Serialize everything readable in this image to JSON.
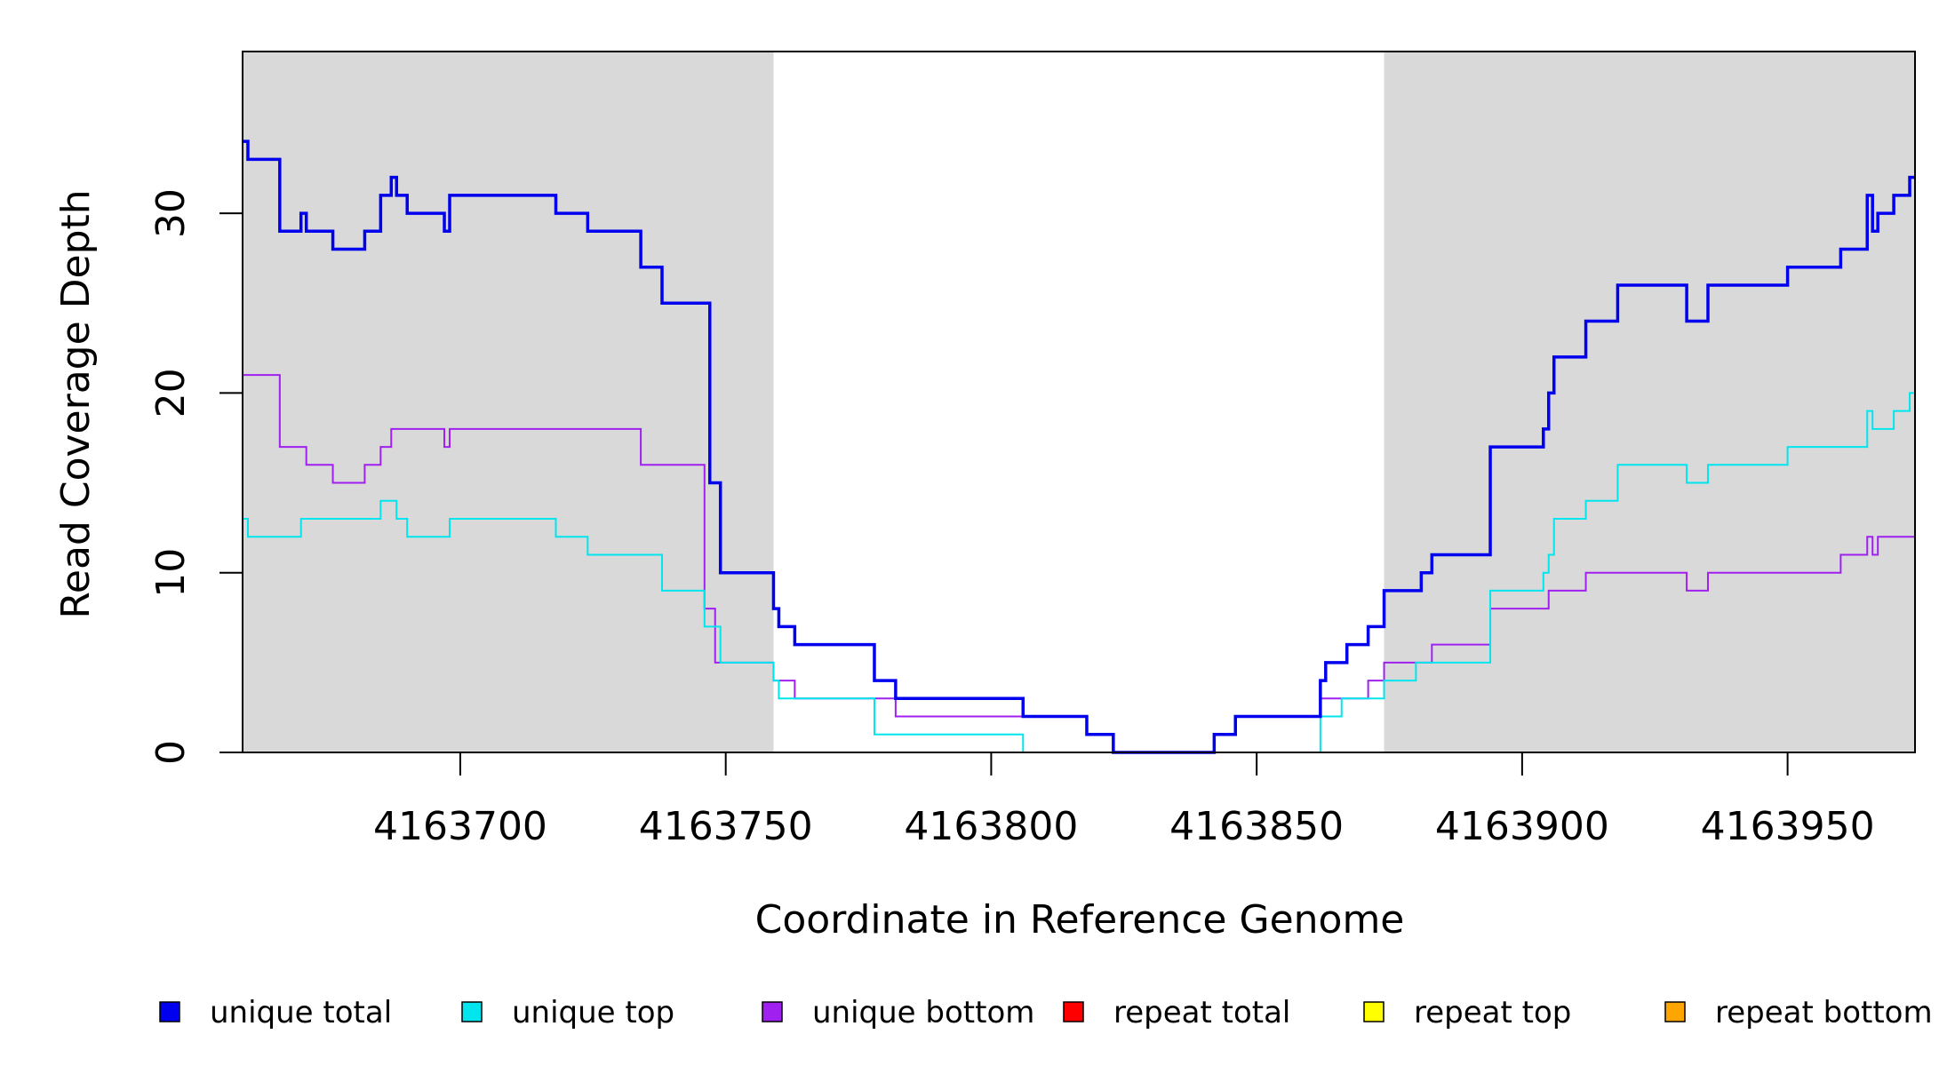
{
  "chart_data": {
    "type": "line",
    "xlabel": "Coordinate in Reference Genome",
    "ylabel": "Read Coverage Depth",
    "xlim": [
      4163659,
      4163974
    ],
    "ylim": [
      0,
      39
    ],
    "x_ticks": [
      4163700,
      4163750,
      4163800,
      4163850,
      4163900,
      4163950
    ],
    "y_ticks": [
      0,
      10,
      20,
      30
    ],
    "shaded_regions": [
      [
        4163659,
        4163759
      ],
      [
        4163874,
        4163974
      ]
    ],
    "grid": false,
    "legend_position": "bottom",
    "series": [
      {
        "name": "unique total",
        "color": "#0000EE",
        "style": "step",
        "points": [
          [
            4163659,
            34
          ],
          [
            4163660,
            33
          ],
          [
            4163666,
            29
          ],
          [
            4163670,
            30
          ],
          [
            4163671,
            29
          ],
          [
            4163676,
            28
          ],
          [
            4163682,
            29
          ],
          [
            4163685,
            31
          ],
          [
            4163687,
            32
          ],
          [
            4163688,
            31
          ],
          [
            4163690,
            30
          ],
          [
            4163697,
            29
          ],
          [
            4163698,
            31
          ],
          [
            4163718,
            30
          ],
          [
            4163724,
            29
          ],
          [
            4163734,
            27
          ],
          [
            4163738,
            25
          ],
          [
            4163747,
            15
          ],
          [
            4163749,
            10
          ],
          [
            4163759,
            8
          ],
          [
            4163760,
            7
          ],
          [
            4163763,
            6
          ],
          [
            4163778,
            4
          ],
          [
            4163782,
            3
          ],
          [
            4163806,
            2
          ],
          [
            4163818,
            1
          ],
          [
            4163823,
            0
          ],
          [
            4163842,
            1
          ],
          [
            4163846,
            2
          ],
          [
            4163862,
            4
          ],
          [
            4163863,
            5
          ],
          [
            4163867,
            6
          ],
          [
            4163871,
            7
          ],
          [
            4163874,
            9
          ],
          [
            4163881,
            10
          ],
          [
            4163883,
            11
          ],
          [
            4163894,
            17
          ],
          [
            4163904,
            18
          ],
          [
            4163905,
            20
          ],
          [
            4163906,
            22
          ],
          [
            4163912,
            24
          ],
          [
            4163918,
            26
          ],
          [
            4163931,
            24
          ],
          [
            4163935,
            26
          ],
          [
            4163950,
            27
          ],
          [
            4163960,
            28
          ],
          [
            4163965,
            31
          ],
          [
            4163966,
            29
          ],
          [
            4163967,
            30
          ],
          [
            4163970,
            31
          ],
          [
            4163973,
            32
          ]
        ]
      },
      {
        "name": "unique top",
        "color": "#00E5EE",
        "style": "step",
        "points": [
          [
            4163659,
            13
          ],
          [
            4163660,
            12
          ],
          [
            4163670,
            13
          ],
          [
            4163685,
            14
          ],
          [
            4163688,
            13
          ],
          [
            4163690,
            12
          ],
          [
            4163698,
            13
          ],
          [
            4163718,
            12
          ],
          [
            4163724,
            11
          ],
          [
            4163738,
            9
          ],
          [
            4163746,
            7
          ],
          [
            4163749,
            5
          ],
          [
            4163759,
            4
          ],
          [
            4163760,
            3
          ],
          [
            4163763,
            3
          ],
          [
            4163778,
            1
          ],
          [
            4163806,
            0
          ],
          [
            4163823,
            0
          ],
          [
            4163862,
            2
          ],
          [
            4163866,
            3
          ],
          [
            4163874,
            4
          ],
          [
            4163880,
            5
          ],
          [
            4163894,
            9
          ],
          [
            4163904,
            10
          ],
          [
            4163905,
            11
          ],
          [
            4163906,
            13
          ],
          [
            4163912,
            14
          ],
          [
            4163918,
            16
          ],
          [
            4163931,
            15
          ],
          [
            4163935,
            16
          ],
          [
            4163950,
            17
          ],
          [
            4163965,
            19
          ],
          [
            4163966,
            18
          ],
          [
            4163970,
            19
          ],
          [
            4163973,
            20
          ]
        ]
      },
      {
        "name": "unique bottom",
        "color": "#A020F0",
        "style": "step",
        "points": [
          [
            4163659,
            21
          ],
          [
            4163666,
            17
          ],
          [
            4163671,
            16
          ],
          [
            4163676,
            15
          ],
          [
            4163682,
            16
          ],
          [
            4163685,
            17
          ],
          [
            4163687,
            18
          ],
          [
            4163697,
            17
          ],
          [
            4163698,
            18
          ],
          [
            4163734,
            16
          ],
          [
            4163746,
            8
          ],
          [
            4163748,
            5
          ],
          [
            4163759,
            4
          ],
          [
            4163763,
            3
          ],
          [
            4163782,
            2
          ],
          [
            4163806,
            2
          ],
          [
            4163818,
            1
          ],
          [
            4163823,
            0
          ],
          [
            4163842,
            1
          ],
          [
            4163846,
            2
          ],
          [
            4163862,
            3
          ],
          [
            4163871,
            4
          ],
          [
            4163874,
            5
          ],
          [
            4163883,
            6
          ],
          [
            4163894,
            8
          ],
          [
            4163905,
            9
          ],
          [
            4163912,
            10
          ],
          [
            4163931,
            9
          ],
          [
            4163935,
            10
          ],
          [
            4163960,
            11
          ],
          [
            4163965,
            12
          ],
          [
            4163966,
            11
          ],
          [
            4163967,
            12
          ]
        ]
      },
      {
        "name": "repeat total",
        "color": "#FF0000",
        "style": "step",
        "points": [
          [
            4163659,
            0
          ],
          [
            4163974,
            0
          ]
        ]
      },
      {
        "name": "repeat top",
        "color": "#FFFF00",
        "style": "step",
        "points": [
          [
            4163659,
            0
          ],
          [
            4163974,
            0
          ]
        ]
      },
      {
        "name": "repeat bottom",
        "color": "#FFA500",
        "style": "step",
        "points": [
          [
            4163659,
            0
          ],
          [
            4163974,
            0
          ]
        ]
      }
    ]
  }
}
